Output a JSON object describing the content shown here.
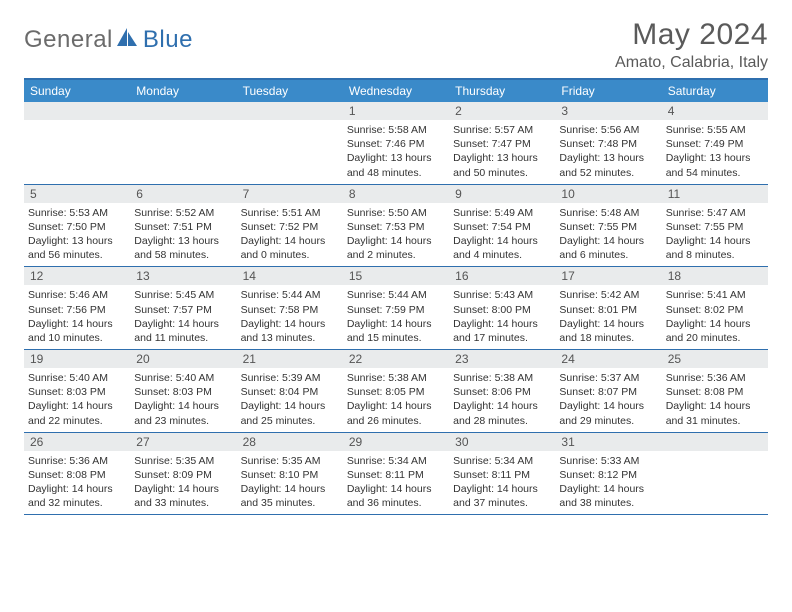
{
  "logo": {
    "general": "General",
    "blue": "Blue"
  },
  "title": "May 2024",
  "location": "Amato, Calabria, Italy",
  "colors": {
    "header_bg": "#3a8ac9",
    "border": "#2f6fae",
    "daybar": "#e9ebec",
    "text": "#333333"
  },
  "day_headers": [
    "Sunday",
    "Monday",
    "Tuesday",
    "Wednesday",
    "Thursday",
    "Friday",
    "Saturday"
  ],
  "weeks": [
    [
      {
        "n": "",
        "sr": "",
        "ss": "",
        "dl1": "",
        "dl2": ""
      },
      {
        "n": "",
        "sr": "",
        "ss": "",
        "dl1": "",
        "dl2": ""
      },
      {
        "n": "",
        "sr": "",
        "ss": "",
        "dl1": "",
        "dl2": ""
      },
      {
        "n": "1",
        "sr": "Sunrise: 5:58 AM",
        "ss": "Sunset: 7:46 PM",
        "dl1": "Daylight: 13 hours",
        "dl2": "and 48 minutes."
      },
      {
        "n": "2",
        "sr": "Sunrise: 5:57 AM",
        "ss": "Sunset: 7:47 PM",
        "dl1": "Daylight: 13 hours",
        "dl2": "and 50 minutes."
      },
      {
        "n": "3",
        "sr": "Sunrise: 5:56 AM",
        "ss": "Sunset: 7:48 PM",
        "dl1": "Daylight: 13 hours",
        "dl2": "and 52 minutes."
      },
      {
        "n": "4",
        "sr": "Sunrise: 5:55 AM",
        "ss": "Sunset: 7:49 PM",
        "dl1": "Daylight: 13 hours",
        "dl2": "and 54 minutes."
      }
    ],
    [
      {
        "n": "5",
        "sr": "Sunrise: 5:53 AM",
        "ss": "Sunset: 7:50 PM",
        "dl1": "Daylight: 13 hours",
        "dl2": "and 56 minutes."
      },
      {
        "n": "6",
        "sr": "Sunrise: 5:52 AM",
        "ss": "Sunset: 7:51 PM",
        "dl1": "Daylight: 13 hours",
        "dl2": "and 58 minutes."
      },
      {
        "n": "7",
        "sr": "Sunrise: 5:51 AM",
        "ss": "Sunset: 7:52 PM",
        "dl1": "Daylight: 14 hours",
        "dl2": "and 0 minutes."
      },
      {
        "n": "8",
        "sr": "Sunrise: 5:50 AM",
        "ss": "Sunset: 7:53 PM",
        "dl1": "Daylight: 14 hours",
        "dl2": "and 2 minutes."
      },
      {
        "n": "9",
        "sr": "Sunrise: 5:49 AM",
        "ss": "Sunset: 7:54 PM",
        "dl1": "Daylight: 14 hours",
        "dl2": "and 4 minutes."
      },
      {
        "n": "10",
        "sr": "Sunrise: 5:48 AM",
        "ss": "Sunset: 7:55 PM",
        "dl1": "Daylight: 14 hours",
        "dl2": "and 6 minutes."
      },
      {
        "n": "11",
        "sr": "Sunrise: 5:47 AM",
        "ss": "Sunset: 7:55 PM",
        "dl1": "Daylight: 14 hours",
        "dl2": "and 8 minutes."
      }
    ],
    [
      {
        "n": "12",
        "sr": "Sunrise: 5:46 AM",
        "ss": "Sunset: 7:56 PM",
        "dl1": "Daylight: 14 hours",
        "dl2": "and 10 minutes."
      },
      {
        "n": "13",
        "sr": "Sunrise: 5:45 AM",
        "ss": "Sunset: 7:57 PM",
        "dl1": "Daylight: 14 hours",
        "dl2": "and 11 minutes."
      },
      {
        "n": "14",
        "sr": "Sunrise: 5:44 AM",
        "ss": "Sunset: 7:58 PM",
        "dl1": "Daylight: 14 hours",
        "dl2": "and 13 minutes."
      },
      {
        "n": "15",
        "sr": "Sunrise: 5:44 AM",
        "ss": "Sunset: 7:59 PM",
        "dl1": "Daylight: 14 hours",
        "dl2": "and 15 minutes."
      },
      {
        "n": "16",
        "sr": "Sunrise: 5:43 AM",
        "ss": "Sunset: 8:00 PM",
        "dl1": "Daylight: 14 hours",
        "dl2": "and 17 minutes."
      },
      {
        "n": "17",
        "sr": "Sunrise: 5:42 AM",
        "ss": "Sunset: 8:01 PM",
        "dl1": "Daylight: 14 hours",
        "dl2": "and 18 minutes."
      },
      {
        "n": "18",
        "sr": "Sunrise: 5:41 AM",
        "ss": "Sunset: 8:02 PM",
        "dl1": "Daylight: 14 hours",
        "dl2": "and 20 minutes."
      }
    ],
    [
      {
        "n": "19",
        "sr": "Sunrise: 5:40 AM",
        "ss": "Sunset: 8:03 PM",
        "dl1": "Daylight: 14 hours",
        "dl2": "and 22 minutes."
      },
      {
        "n": "20",
        "sr": "Sunrise: 5:40 AM",
        "ss": "Sunset: 8:03 PM",
        "dl1": "Daylight: 14 hours",
        "dl2": "and 23 minutes."
      },
      {
        "n": "21",
        "sr": "Sunrise: 5:39 AM",
        "ss": "Sunset: 8:04 PM",
        "dl1": "Daylight: 14 hours",
        "dl2": "and 25 minutes."
      },
      {
        "n": "22",
        "sr": "Sunrise: 5:38 AM",
        "ss": "Sunset: 8:05 PM",
        "dl1": "Daylight: 14 hours",
        "dl2": "and 26 minutes."
      },
      {
        "n": "23",
        "sr": "Sunrise: 5:38 AM",
        "ss": "Sunset: 8:06 PM",
        "dl1": "Daylight: 14 hours",
        "dl2": "and 28 minutes."
      },
      {
        "n": "24",
        "sr": "Sunrise: 5:37 AM",
        "ss": "Sunset: 8:07 PM",
        "dl1": "Daylight: 14 hours",
        "dl2": "and 29 minutes."
      },
      {
        "n": "25",
        "sr": "Sunrise: 5:36 AM",
        "ss": "Sunset: 8:08 PM",
        "dl1": "Daylight: 14 hours",
        "dl2": "and 31 minutes."
      }
    ],
    [
      {
        "n": "26",
        "sr": "Sunrise: 5:36 AM",
        "ss": "Sunset: 8:08 PM",
        "dl1": "Daylight: 14 hours",
        "dl2": "and 32 minutes."
      },
      {
        "n": "27",
        "sr": "Sunrise: 5:35 AM",
        "ss": "Sunset: 8:09 PM",
        "dl1": "Daylight: 14 hours",
        "dl2": "and 33 minutes."
      },
      {
        "n": "28",
        "sr": "Sunrise: 5:35 AM",
        "ss": "Sunset: 8:10 PM",
        "dl1": "Daylight: 14 hours",
        "dl2": "and 35 minutes."
      },
      {
        "n": "29",
        "sr": "Sunrise: 5:34 AM",
        "ss": "Sunset: 8:11 PM",
        "dl1": "Daylight: 14 hours",
        "dl2": "and 36 minutes."
      },
      {
        "n": "30",
        "sr": "Sunrise: 5:34 AM",
        "ss": "Sunset: 8:11 PM",
        "dl1": "Daylight: 14 hours",
        "dl2": "and 37 minutes."
      },
      {
        "n": "31",
        "sr": "Sunrise: 5:33 AM",
        "ss": "Sunset: 8:12 PM",
        "dl1": "Daylight: 14 hours",
        "dl2": "and 38 minutes."
      },
      {
        "n": "",
        "sr": "",
        "ss": "",
        "dl1": "",
        "dl2": ""
      }
    ]
  ]
}
